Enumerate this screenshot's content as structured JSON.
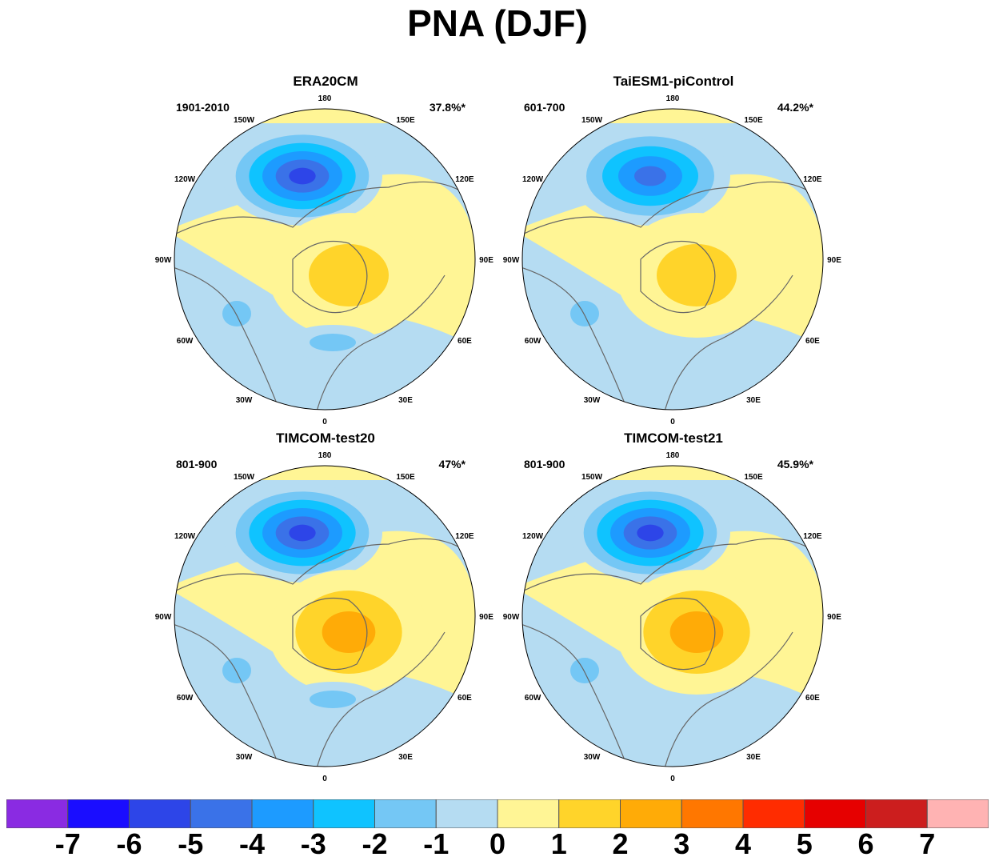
{
  "title": "PNA (DJF)",
  "chart_data": {
    "type": "polar stereographic contour map (northern hemisphere)",
    "panels": [
      {
        "title": "ERA20CM",
        "period": "1901-2010",
        "explained_variance": "37.8%*",
        "features": [
          {
            "type": "low",
            "region": "North Pacific / Aleutian",
            "min_value": -6
          },
          {
            "type": "high",
            "region": "Canada / Arctic",
            "max_value": 2
          },
          {
            "type": "low",
            "region": "Southeast US / subtropical Atlantic",
            "min_value": -2
          },
          {
            "type": "low",
            "region": "North Atlantic / Europe",
            "min_value": -2
          }
        ]
      },
      {
        "title": "TaiESM1-piControl",
        "period": "601-700",
        "explained_variance": "44.2%*",
        "features": [
          {
            "type": "low",
            "region": "North Pacific / Aleutian",
            "min_value": -5
          },
          {
            "type": "high",
            "region": "Canada / Arctic",
            "max_value": 2
          },
          {
            "type": "low",
            "region": "Southeast US / subtropical Atlantic",
            "min_value": -2
          }
        ]
      },
      {
        "title": "TIMCOM-test20",
        "period": "801-900",
        "explained_variance": "47%*",
        "features": [
          {
            "type": "low",
            "region": "North Pacific / Aleutian",
            "min_value": -6
          },
          {
            "type": "high",
            "region": "Canada / Arctic",
            "max_value": 3
          },
          {
            "type": "low",
            "region": "Southeast US / subtropical Atlantic",
            "min_value": -2
          },
          {
            "type": "low",
            "region": "North Atlantic / Europe",
            "min_value": -2
          }
        ]
      },
      {
        "title": "TIMCOM-test21",
        "period": "801-900",
        "explained_variance": "45.9%*",
        "features": [
          {
            "type": "low",
            "region": "North Pacific / Aleutian",
            "min_value": -6
          },
          {
            "type": "high",
            "region": "Canada / Arctic",
            "max_value": 3
          },
          {
            "type": "low",
            "region": "Southeast US / subtropical Atlantic",
            "min_value": -2
          }
        ]
      }
    ],
    "longitude_labels": [
      "180",
      "150E",
      "120E",
      "90E",
      "60E",
      "30E",
      "0",
      "30W",
      "60W",
      "90W",
      "120W",
      "150W"
    ],
    "colorbar": {
      "labels": [
        "-7",
        "-6",
        "-5",
        "-4",
        "-3",
        "-2",
        "-1",
        "0",
        "1",
        "2",
        "3",
        "4",
        "5",
        "6",
        "7"
      ],
      "colors": [
        "#8a2be2",
        "#1a0dff",
        "#2d45e8",
        "#3a72e8",
        "#1d9bff",
        "#0fc3ff",
        "#74c7f5",
        "#b5dcf2",
        "#fff595",
        "#ffd42a",
        "#ffab07",
        "#ff7700",
        "#ff2c00",
        "#e60000",
        "#cc1e1e",
        "#ffb3b3"
      ]
    }
  }
}
